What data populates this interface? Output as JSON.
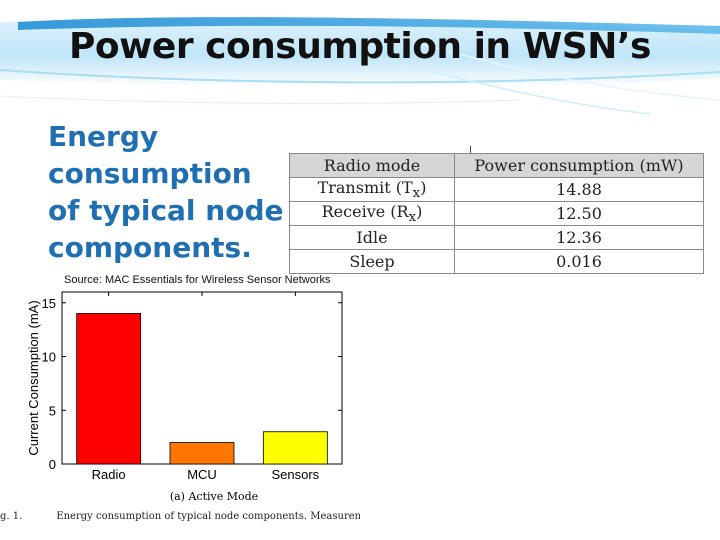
{
  "slide": {
    "title": "Power consumption in WSN’s",
    "subtitle_lines": [
      "Energy consumption",
      "of typical node",
      "components."
    ]
  },
  "colors": {
    "header_light": "#e9f6fd",
    "header_blue": "#1d8fd8",
    "subtitle": "#1f6fb2",
    "bar_radio": "#ff0000",
    "bar_mcu": "#ff7700",
    "bar_sensors": "#ffff00"
  },
  "radio_table": {
    "headers": [
      "Radio mode",
      "Power consumption (mW)"
    ],
    "rows": [
      {
        "mode": "Transmit (Tx)",
        "mode_base": "Transmit (T",
        "mode_sub": "x",
        "value": "14.88"
      },
      {
        "mode": "Receive (Rx)",
        "mode_base": "Receive (R",
        "mode_sub": "x",
        "value": "12.50"
      },
      {
        "mode": "Idle",
        "mode_base": "Idle",
        "mode_sub": "",
        "value": "12.36"
      },
      {
        "mode": "Sleep",
        "mode_base": "Sleep",
        "mode_sub": "",
        "value": "0.016"
      }
    ]
  },
  "source_note": "Source: MAC Essentials for Wireless Sensor Networks",
  "chart_data": {
    "type": "bar",
    "categories": [
      "Radio",
      "MCU",
      "Sensors"
    ],
    "values": [
      14,
      2,
      3
    ],
    "ylabel": "Current Consumption (mA)",
    "xlabel": "(a) Active Mode",
    "ylim": [
      0,
      16
    ],
    "yticks": [
      0,
      5,
      10,
      15
    ],
    "grid": false
  },
  "caption": {
    "fig_label": "g. 1.",
    "text": "Energy consumption of typical node components. Measuren"
  }
}
